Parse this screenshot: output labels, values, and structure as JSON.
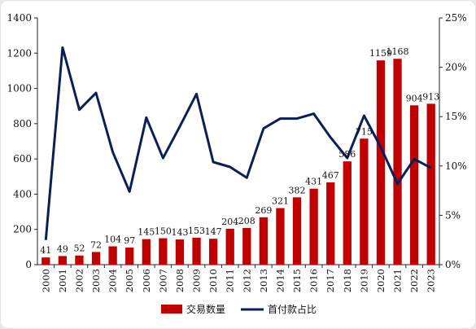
{
  "chart_data": {
    "type": "bar+line",
    "categories": [
      "2000",
      "2001",
      "2002",
      "2003",
      "2004",
      "2005",
      "2006",
      "2007",
      "2008",
      "2009",
      "2010",
      "2011",
      "2012",
      "2013",
      "2014",
      "2015",
      "2016",
      "2017",
      "2018",
      "2019",
      "2020",
      "2021",
      "2022",
      "2023"
    ],
    "series": [
      {
        "name": "交易数量",
        "type": "bar",
        "axis": "left",
        "color": "#c00000",
        "values": [
          41,
          49,
          52,
          72,
          104,
          97,
          145,
          150,
          143,
          153,
          147,
          204,
          208,
          269,
          321,
          382,
          431,
          467,
          586,
          715,
          1159,
          1168,
          904,
          913
        ]
      },
      {
        "name": "首付款占比",
        "type": "line",
        "axis": "right",
        "color": "#0a1f55",
        "values": [
          2.5,
          22.0,
          15.7,
          17.4,
          11.4,
          7.4,
          14.9,
          10.8,
          14.0,
          17.3,
          10.4,
          9.9,
          8.8,
          13.8,
          14.8,
          14.8,
          15.3,
          12.9,
          10.8,
          15.1,
          11.9,
          8.2,
          10.7,
          9.8
        ]
      }
    ],
    "left_axis": {
      "ylim": [
        0,
        1400
      ],
      "ticks": [
        "0",
        "200",
        "400",
        "600",
        "800",
        "1000",
        "1200",
        "1400"
      ]
    },
    "right_axis": {
      "ylim": [
        0,
        25
      ],
      "ticks": [
        "0%",
        "5%",
        "10%",
        "15%",
        "20%",
        "25%"
      ]
    },
    "grid": false,
    "legend_position": "bottom"
  }
}
